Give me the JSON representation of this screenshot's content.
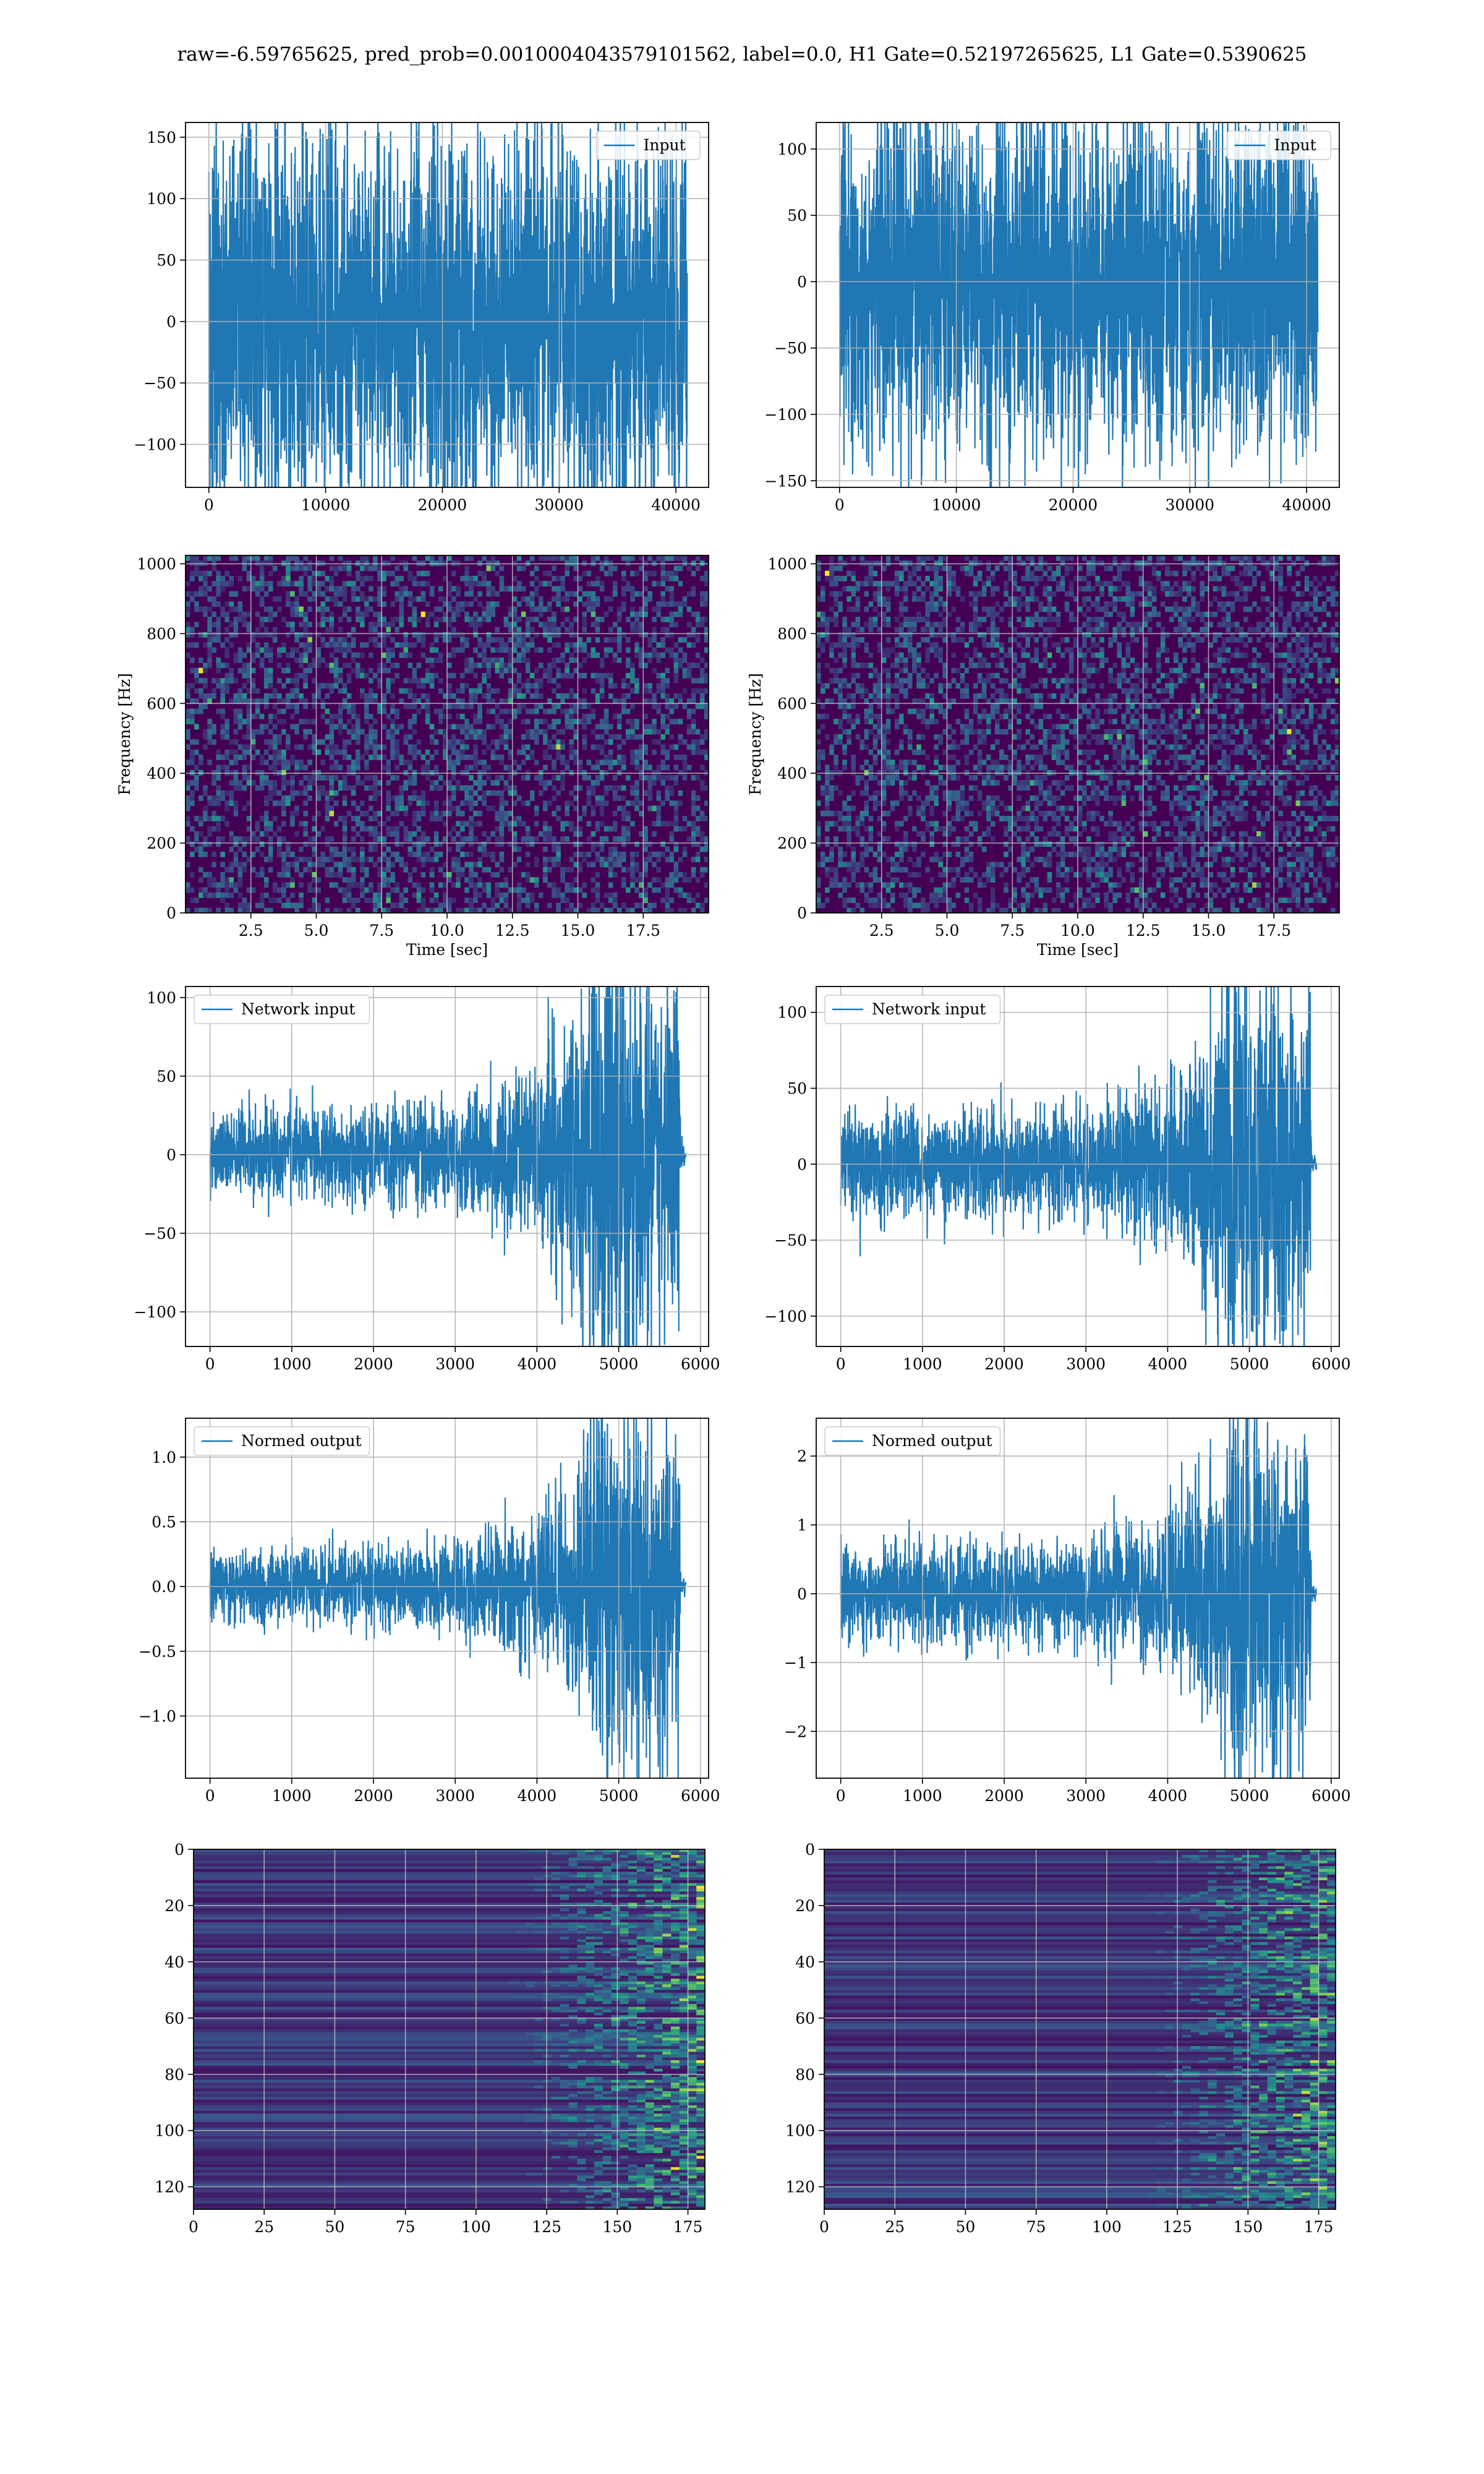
{
  "suptitle": "raw=-6.59765625, pred_prob=0.0010004043579101562, label=0.0, H1 Gate=0.52197265625, L1 Gate=0.5390625",
  "colors": {
    "series": "#1f77b4",
    "viridis_dark": "#440154",
    "viridis_mid": "#3b528b",
    "viridis_teal": "#21918c",
    "viridis_green": "#5ec962",
    "viridis_yellow": "#fde725",
    "grid": "#b0b0b0"
  },
  "chart_data": [
    {
      "id": "h1-input",
      "type": "line",
      "legend": "Input",
      "legend_loc": "upper right",
      "xlim": [
        -2000,
        42800
      ],
      "ylim": [
        -135,
        162
      ],
      "xticks": [
        0,
        10000,
        20000,
        30000,
        40000
      ],
      "yticks": [
        -100,
        -50,
        0,
        50,
        100,
        150
      ],
      "xticklabels": [
        "0",
        "10000",
        "20000",
        "30000",
        "40000"
      ],
      "yticklabels": [
        "−100",
        "−50",
        "0",
        "50",
        "100",
        "150"
      ],
      "series": [
        {
          "x_range": [
            0,
            40960
          ],
          "n_samples": 40960,
          "envelope_typical": [
            -65,
            65
          ],
          "peak_max": 155,
          "peak_min": -130
        }
      ],
      "xlabel": "",
      "ylabel": "",
      "grid": true
    },
    {
      "id": "l1-input",
      "type": "line",
      "legend": "Input",
      "legend_loc": "upper right",
      "xlim": [
        -2000,
        42800
      ],
      "ylim": [
        -155,
        120
      ],
      "xticks": [
        0,
        10000,
        20000,
        30000,
        40000
      ],
      "yticks": [
        -150,
        -100,
        -50,
        0,
        50,
        100
      ],
      "xticklabels": [
        "0",
        "10000",
        "20000",
        "30000",
        "40000"
      ],
      "yticklabels": [
        "−150",
        "−100",
        "−50",
        "0",
        "50",
        "100"
      ],
      "series": [
        {
          "x_range": [
            0,
            40960
          ],
          "n_samples": 40960,
          "envelope_typical": [
            -55,
            55
          ],
          "peak_max": 125,
          "peak_min": -140
        }
      ],
      "xlabel": "",
      "ylabel": "",
      "grid": true
    },
    {
      "id": "h1-spectrogram",
      "type": "heatmap",
      "colormap": "viridis",
      "xlim": [
        0,
        20
      ],
      "ylim": [
        0,
        1024
      ],
      "xticks": [
        2.5,
        5.0,
        7.5,
        10.0,
        12.5,
        15.0,
        17.5
      ],
      "yticks": [
        0,
        200,
        400,
        600,
        800,
        1000
      ],
      "xticklabels": [
        "2.5",
        "5.0",
        "7.5",
        "10.0",
        "12.5",
        "15.0",
        "17.5"
      ],
      "yticklabels": [
        "0",
        "200",
        "400",
        "600",
        "800",
        "1000"
      ],
      "xlabel": "Time [sec]",
      "ylabel": "Frequency [Hz]",
      "grid": true,
      "description": "low-amplitude noise, few bright pixels"
    },
    {
      "id": "l1-spectrogram",
      "type": "heatmap",
      "colormap": "viridis",
      "xlim": [
        0,
        20
      ],
      "ylim": [
        0,
        1024
      ],
      "xticks": [
        2.5,
        5.0,
        7.5,
        10.0,
        12.5,
        15.0,
        17.5
      ],
      "yticks": [
        0,
        200,
        400,
        600,
        800,
        1000
      ],
      "xticklabels": [
        "2.5",
        "5.0",
        "7.5",
        "10.0",
        "12.5",
        "15.0",
        "17.5"
      ],
      "yticklabels": [
        "0",
        "200",
        "400",
        "600",
        "800",
        "1000"
      ],
      "xlabel": "Time [sec]",
      "ylabel": "Frequency [Hz]",
      "grid": true
    },
    {
      "id": "h1-network-input",
      "type": "line",
      "legend": "Network input",
      "legend_loc": "upper left",
      "xlim": [
        -300,
        6100
      ],
      "ylim": [
        -122,
        107
      ],
      "xticks": [
        0,
        1000,
        2000,
        3000,
        4000,
        5000,
        6000
      ],
      "yticks": [
        -100,
        -50,
        0,
        50,
        100
      ],
      "xticklabels": [
        "0",
        "1000",
        "2000",
        "3000",
        "4000",
        "5000",
        "6000"
      ],
      "yticklabels": [
        "−100",
        "−50",
        "0",
        "50",
        "100"
      ],
      "series": [
        {
          "x_range": [
            0,
            5760
          ],
          "envelope": [
            [
              0,
              15
            ],
            [
              3000,
              18
            ],
            [
              4000,
              30
            ],
            [
              4600,
              55
            ],
            [
              4800,
              85
            ],
            [
              5000,
              70
            ],
            [
              5740,
              60
            ],
            [
              5760,
              4
            ],
            [
              5820,
              4
            ]
          ],
          "peak_max": 100,
          "peak_min": -112
        }
      ],
      "xlabel": "",
      "ylabel": "",
      "grid": true
    },
    {
      "id": "l1-network-input",
      "type": "line",
      "legend": "Network input",
      "legend_loc": "upper left",
      "xlim": [
        -300,
        6100
      ],
      "ylim": [
        -120,
        117
      ],
      "xticks": [
        0,
        1000,
        2000,
        3000,
        4000,
        5000,
        6000
      ],
      "yticks": [
        -100,
        -50,
        0,
        50,
        100
      ],
      "xticklabels": [
        "0",
        "1000",
        "2000",
        "3000",
        "4000",
        "5000",
        "6000"
      ],
      "yticklabels": [
        "−100",
        "−50",
        "0",
        "50",
        "100"
      ],
      "series": [
        {
          "x_range": [
            0,
            5760
          ],
          "envelope": [
            [
              0,
              18
            ],
            [
              3000,
              20
            ],
            [
              4000,
              30
            ],
            [
              4600,
              55
            ],
            [
              4800,
              80
            ],
            [
              5000,
              70
            ],
            [
              5740,
              60
            ],
            [
              5760,
              3
            ],
            [
              5820,
              3
            ]
          ],
          "peak_max": 110,
          "peak_min": -108
        }
      ],
      "xlabel": "",
      "ylabel": "",
      "grid": true
    },
    {
      "id": "h1-normed-output",
      "type": "line",
      "legend": "Normed output",
      "legend_loc": "upper left",
      "xlim": [
        -300,
        6100
      ],
      "ylim": [
        -1.48,
        1.3
      ],
      "xticks": [
        0,
        1000,
        2000,
        3000,
        4000,
        5000,
        6000
      ],
      "yticks": [
        -1.0,
        -0.5,
        0.0,
        0.5,
        1.0
      ],
      "xticklabels": [
        "0",
        "1000",
        "2000",
        "3000",
        "4000",
        "5000",
        "6000"
      ],
      "yticklabels": [
        "−1.0",
        "−0.5",
        "0.0",
        "0.5",
        "1.0"
      ],
      "series": [
        {
          "x_range": [
            0,
            5760
          ],
          "envelope": [
            [
              0,
              0.15
            ],
            [
              3000,
              0.18
            ],
            [
              4000,
              0.32
            ],
            [
              4600,
              0.6
            ],
            [
              4800,
              0.95
            ],
            [
              5000,
              0.8
            ],
            [
              5740,
              0.7
            ],
            [
              5760,
              0.04
            ],
            [
              5820,
              0.04
            ]
          ],
          "peak_max": 1.2,
          "peak_min": -1.38
        }
      ],
      "xlabel": "",
      "ylabel": "",
      "grid": true
    },
    {
      "id": "l1-normed-output",
      "type": "line",
      "legend": "Normed output",
      "legend_loc": "upper left",
      "xlim": [
        -300,
        6100
      ],
      "ylim": [
        -2.68,
        2.55
      ],
      "xticks": [
        0,
        1000,
        2000,
        3000,
        4000,
        5000,
        6000
      ],
      "yticks": [
        -2,
        -1,
        0,
        1,
        2
      ],
      "xticklabels": [
        "0",
        "1000",
        "2000",
        "3000",
        "4000",
        "5000",
        "6000"
      ],
      "yticklabels": [
        "−2",
        "−1",
        "0",
        "1",
        "2"
      ],
      "series": [
        {
          "x_range": [
            0,
            5760
          ],
          "envelope": [
            [
              0,
              0.4
            ],
            [
              3000,
              0.42
            ],
            [
              4000,
              0.6
            ],
            [
              4600,
              1.1
            ],
            [
              4800,
              1.7
            ],
            [
              5000,
              1.4
            ],
            [
              5740,
              1.3
            ],
            [
              5760,
              0.06
            ],
            [
              5820,
              0.06
            ]
          ],
          "peak_max": 2.4,
          "peak_min": -2.35
        }
      ],
      "xlabel": "",
      "ylabel": "",
      "grid": true
    },
    {
      "id": "h1-features",
      "type": "heatmap",
      "colormap": "viridis",
      "xlim": [
        0,
        181
      ],
      "ylim": [
        128,
        0
      ],
      "xticks": [
        0,
        25,
        50,
        75,
        100,
        125,
        150,
        175
      ],
      "yticks": [
        0,
        20,
        40,
        60,
        80,
        100,
        120
      ],
      "xticklabels": [
        "0",
        "25",
        "50",
        "75",
        "100",
        "125",
        "150",
        "175"
      ],
      "yticklabels": [
        "0",
        "20",
        "40",
        "60",
        "80",
        "100",
        "120"
      ],
      "xlabel": "",
      "ylabel": "",
      "grid": true
    },
    {
      "id": "l1-features",
      "type": "heatmap",
      "colormap": "viridis",
      "xlim": [
        0,
        181
      ],
      "ylim": [
        128,
        0
      ],
      "xticks": [
        0,
        25,
        50,
        75,
        100,
        125,
        150,
        175
      ],
      "yticks": [
        0,
        20,
        40,
        60,
        80,
        100,
        120
      ],
      "xticklabels": [
        "0",
        "25",
        "50",
        "75",
        "100",
        "125",
        "150",
        "175"
      ],
      "yticklabels": [
        "0",
        "20",
        "40",
        "60",
        "80",
        "100",
        "120"
      ],
      "xlabel": "",
      "ylabel": "",
      "grid": true
    }
  ]
}
